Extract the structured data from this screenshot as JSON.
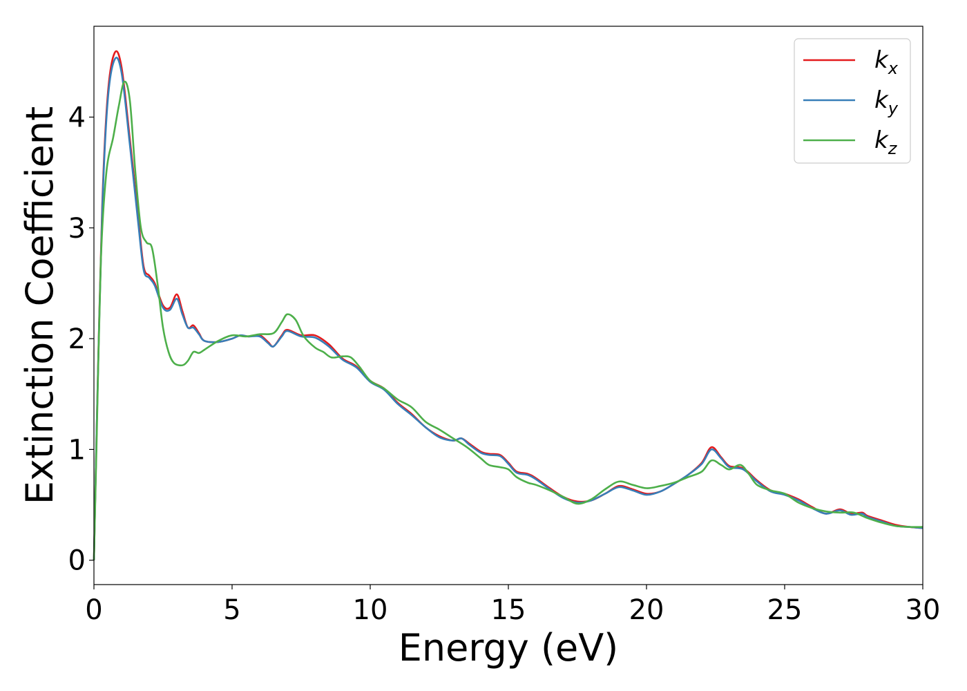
{
  "chart_data": {
    "type": "line",
    "title": "",
    "xlabel": "Energy (eV)",
    "ylabel": "Extinction Coefficient",
    "xlim": [
      0,
      30
    ],
    "ylim": [
      -0.22,
      4.82
    ],
    "x_ticks": [
      0,
      5,
      10,
      15,
      20,
      25,
      30
    ],
    "y_ticks": [
      0,
      1,
      2,
      3,
      4
    ],
    "grid": false,
    "legend_position": "top-right",
    "series": [
      {
        "name": "k_x",
        "label_base": "k",
        "label_sub": "x",
        "color": "#e41a1c",
        "points": [
          [
            0,
            0
          ],
          [
            0.1,
            1.2
          ],
          [
            0.3,
            3.2
          ],
          [
            0.5,
            4.2
          ],
          [
            0.75,
            4.58
          ],
          [
            1.0,
            4.45
          ],
          [
            1.3,
            3.8
          ],
          [
            1.6,
            3.1
          ],
          [
            1.8,
            2.65
          ],
          [
            2.0,
            2.57
          ],
          [
            2.2,
            2.5
          ],
          [
            2.5,
            2.3
          ],
          [
            2.75,
            2.28
          ],
          [
            3.0,
            2.4
          ],
          [
            3.2,
            2.25
          ],
          [
            3.4,
            2.1
          ],
          [
            3.6,
            2.12
          ],
          [
            3.8,
            2.05
          ],
          [
            4.0,
            1.98
          ],
          [
            4.5,
            1.97
          ],
          [
            5.0,
            2.0
          ],
          [
            5.3,
            2.03
          ],
          [
            5.6,
            2.02
          ],
          [
            6.0,
            2.03
          ],
          [
            6.3,
            1.97
          ],
          [
            6.5,
            1.93
          ],
          [
            6.8,
            2.03
          ],
          [
            7.0,
            2.08
          ],
          [
            7.5,
            2.03
          ],
          [
            8.0,
            2.03
          ],
          [
            8.5,
            1.95
          ],
          [
            9.0,
            1.82
          ],
          [
            9.5,
            1.75
          ],
          [
            10.0,
            1.62
          ],
          [
            10.5,
            1.55
          ],
          [
            11.0,
            1.42
          ],
          [
            11.5,
            1.32
          ],
          [
            12.0,
            1.2
          ],
          [
            12.5,
            1.12
          ],
          [
            13.0,
            1.08
          ],
          [
            13.3,
            1.1
          ],
          [
            13.6,
            1.05
          ],
          [
            14.0,
            0.98
          ],
          [
            14.3,
            0.96
          ],
          [
            14.7,
            0.95
          ],
          [
            15.0,
            0.88
          ],
          [
            15.3,
            0.8
          ],
          [
            15.7,
            0.78
          ],
          [
            16.0,
            0.74
          ],
          [
            16.5,
            0.65
          ],
          [
            17.0,
            0.57
          ],
          [
            17.5,
            0.53
          ],
          [
            18.0,
            0.54
          ],
          [
            18.5,
            0.6
          ],
          [
            19.0,
            0.67
          ],
          [
            19.5,
            0.64
          ],
          [
            20.0,
            0.6
          ],
          [
            20.5,
            0.62
          ],
          [
            21.0,
            0.69
          ],
          [
            21.5,
            0.77
          ],
          [
            22.0,
            0.88
          ],
          [
            22.35,
            1.02
          ],
          [
            22.7,
            0.93
          ],
          [
            23.0,
            0.85
          ],
          [
            23.5,
            0.83
          ],
          [
            24.0,
            0.72
          ],
          [
            24.5,
            0.63
          ],
          [
            25.0,
            0.6
          ],
          [
            25.5,
            0.55
          ],
          [
            26.0,
            0.48
          ],
          [
            26.5,
            0.42
          ],
          [
            27.0,
            0.46
          ],
          [
            27.4,
            0.42
          ],
          [
            27.8,
            0.43
          ],
          [
            28.0,
            0.4
          ],
          [
            28.5,
            0.36
          ],
          [
            29.0,
            0.32
          ],
          [
            29.5,
            0.3
          ],
          [
            30.0,
            0.29
          ]
        ]
      },
      {
        "name": "k_y",
        "label_base": "k",
        "label_sub": "y",
        "color": "#377eb8",
        "points": [
          [
            0,
            0
          ],
          [
            0.1,
            1.2
          ],
          [
            0.3,
            3.15
          ],
          [
            0.5,
            4.15
          ],
          [
            0.75,
            4.52
          ],
          [
            1.0,
            4.4
          ],
          [
            1.3,
            3.75
          ],
          [
            1.6,
            3.05
          ],
          [
            1.8,
            2.62
          ],
          [
            2.0,
            2.55
          ],
          [
            2.2,
            2.48
          ],
          [
            2.5,
            2.28
          ],
          [
            2.75,
            2.26
          ],
          [
            3.0,
            2.36
          ],
          [
            3.2,
            2.22
          ],
          [
            3.4,
            2.1
          ],
          [
            3.6,
            2.1
          ],
          [
            3.8,
            2.04
          ],
          [
            4.0,
            1.98
          ],
          [
            4.5,
            1.97
          ],
          [
            5.0,
            2.0
          ],
          [
            5.3,
            2.03
          ],
          [
            5.6,
            2.02
          ],
          [
            6.0,
            2.02
          ],
          [
            6.3,
            1.96
          ],
          [
            6.5,
            1.93
          ],
          [
            6.8,
            2.02
          ],
          [
            7.0,
            2.07
          ],
          [
            7.5,
            2.02
          ],
          [
            8.0,
            2.01
          ],
          [
            8.5,
            1.93
          ],
          [
            9.0,
            1.81
          ],
          [
            9.5,
            1.74
          ],
          [
            10.0,
            1.61
          ],
          [
            10.5,
            1.54
          ],
          [
            11.0,
            1.41
          ],
          [
            11.5,
            1.31
          ],
          [
            12.0,
            1.2
          ],
          [
            12.5,
            1.11
          ],
          [
            13.0,
            1.08
          ],
          [
            13.3,
            1.1
          ],
          [
            13.6,
            1.04
          ],
          [
            14.0,
            0.97
          ],
          [
            14.3,
            0.95
          ],
          [
            14.7,
            0.94
          ],
          [
            15.0,
            0.87
          ],
          [
            15.3,
            0.79
          ],
          [
            15.7,
            0.77
          ],
          [
            16.0,
            0.73
          ],
          [
            16.5,
            0.64
          ],
          [
            17.0,
            0.56
          ],
          [
            17.5,
            0.52
          ],
          [
            18.0,
            0.54
          ],
          [
            18.5,
            0.6
          ],
          [
            19.0,
            0.66
          ],
          [
            19.5,
            0.63
          ],
          [
            20.0,
            0.59
          ],
          [
            20.5,
            0.62
          ],
          [
            21.0,
            0.69
          ],
          [
            21.5,
            0.77
          ],
          [
            22.0,
            0.87
          ],
          [
            22.35,
            1.0
          ],
          [
            22.7,
            0.92
          ],
          [
            23.0,
            0.84
          ],
          [
            23.5,
            0.82
          ],
          [
            24.0,
            0.71
          ],
          [
            24.5,
            0.62
          ],
          [
            25.0,
            0.59
          ],
          [
            25.5,
            0.54
          ],
          [
            26.0,
            0.47
          ],
          [
            26.5,
            0.42
          ],
          [
            27.0,
            0.45
          ],
          [
            27.4,
            0.41
          ],
          [
            27.8,
            0.42
          ],
          [
            28.0,
            0.39
          ],
          [
            28.5,
            0.35
          ],
          [
            29.0,
            0.31
          ],
          [
            29.5,
            0.3
          ],
          [
            30.0,
            0.29
          ]
        ]
      },
      {
        "name": "k_z",
        "label_base": "k",
        "label_sub": "z",
        "color": "#4daf4a",
        "points": [
          [
            0,
            0
          ],
          [
            0.1,
            1.1
          ],
          [
            0.25,
            2.7
          ],
          [
            0.45,
            3.5
          ],
          [
            0.7,
            3.82
          ],
          [
            0.9,
            4.1
          ],
          [
            1.1,
            4.32
          ],
          [
            1.3,
            4.15
          ],
          [
            1.5,
            3.5
          ],
          [
            1.7,
            3.0
          ],
          [
            1.9,
            2.87
          ],
          [
            2.1,
            2.82
          ],
          [
            2.3,
            2.5
          ],
          [
            2.5,
            2.1
          ],
          [
            2.7,
            1.88
          ],
          [
            2.9,
            1.78
          ],
          [
            3.2,
            1.76
          ],
          [
            3.4,
            1.8
          ],
          [
            3.6,
            1.88
          ],
          [
            3.8,
            1.87
          ],
          [
            4.0,
            1.9
          ],
          [
            4.5,
            1.98
          ],
          [
            5.0,
            2.03
          ],
          [
            5.5,
            2.02
          ],
          [
            6.0,
            2.04
          ],
          [
            6.5,
            2.05
          ],
          [
            6.8,
            2.15
          ],
          [
            7.0,
            2.22
          ],
          [
            7.3,
            2.17
          ],
          [
            7.6,
            2.02
          ],
          [
            8.0,
            1.92
          ],
          [
            8.3,
            1.88
          ],
          [
            8.6,
            1.83
          ],
          [
            9.0,
            1.84
          ],
          [
            9.3,
            1.83
          ],
          [
            9.6,
            1.75
          ],
          [
            10.0,
            1.62
          ],
          [
            10.5,
            1.55
          ],
          [
            11.0,
            1.45
          ],
          [
            11.5,
            1.38
          ],
          [
            12.0,
            1.25
          ],
          [
            12.5,
            1.18
          ],
          [
            13.0,
            1.1
          ],
          [
            13.5,
            1.02
          ],
          [
            14.0,
            0.92
          ],
          [
            14.3,
            0.86
          ],
          [
            14.7,
            0.84
          ],
          [
            15.0,
            0.82
          ],
          [
            15.3,
            0.75
          ],
          [
            15.7,
            0.7
          ],
          [
            16.0,
            0.68
          ],
          [
            16.5,
            0.63
          ],
          [
            17.0,
            0.57
          ],
          [
            17.5,
            0.51
          ],
          [
            18.0,
            0.55
          ],
          [
            18.5,
            0.64
          ],
          [
            19.0,
            0.71
          ],
          [
            19.5,
            0.68
          ],
          [
            20.0,
            0.65
          ],
          [
            20.5,
            0.67
          ],
          [
            21.0,
            0.7
          ],
          [
            21.5,
            0.75
          ],
          [
            22.0,
            0.8
          ],
          [
            22.35,
            0.9
          ],
          [
            22.7,
            0.86
          ],
          [
            23.0,
            0.82
          ],
          [
            23.4,
            0.86
          ],
          [
            23.7,
            0.78
          ],
          [
            24.0,
            0.68
          ],
          [
            24.5,
            0.63
          ],
          [
            25.0,
            0.6
          ],
          [
            25.5,
            0.52
          ],
          [
            26.0,
            0.47
          ],
          [
            26.5,
            0.44
          ],
          [
            27.0,
            0.43
          ],
          [
            27.5,
            0.43
          ],
          [
            28.0,
            0.38
          ],
          [
            28.5,
            0.34
          ],
          [
            29.0,
            0.31
          ],
          [
            29.5,
            0.3
          ],
          [
            30.0,
            0.3
          ]
        ]
      }
    ]
  }
}
